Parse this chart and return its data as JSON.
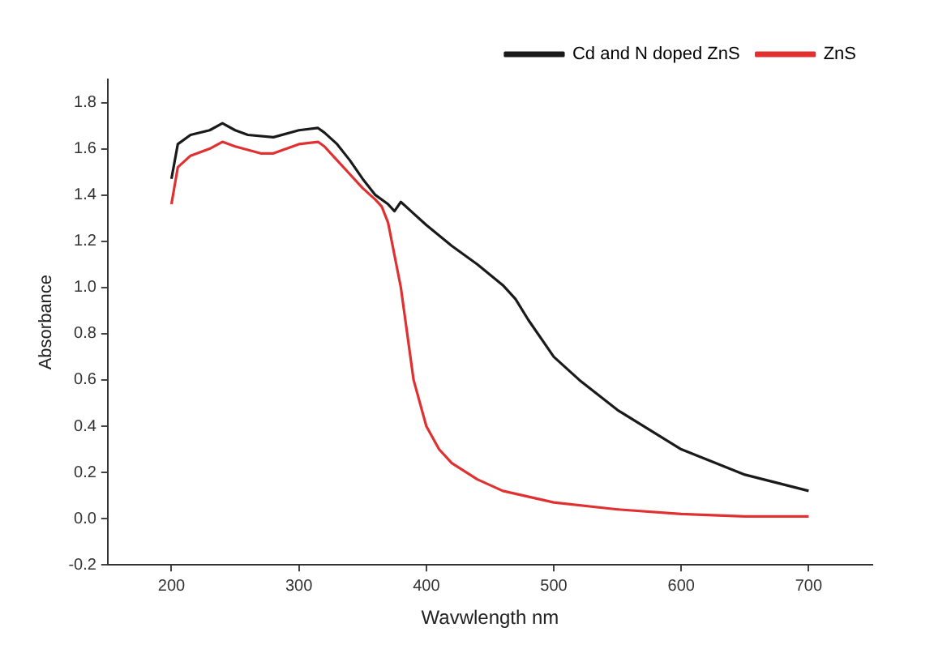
{
  "chart_data": {
    "type": "line",
    "xlabel": "Wavwlength nm",
    "ylabel": "Absorbance",
    "xlim": [
      150,
      750
    ],
    "xticks": [
      200,
      300,
      400,
      500,
      600,
      700
    ],
    "ylim": [
      -0.2,
      1.9
    ],
    "yticks": [
      -0.2,
      {
        "value": 0,
        "label": "0.0"
      },
      0.2,
      0.4,
      0.6,
      0.8,
      {
        "value": 1,
        "label": "1.0"
      },
      1.2,
      1.4,
      1.6,
      1.8
    ],
    "legend": "top right",
    "grid": false,
    "marker": "none",
    "line_style": "solid",
    "series": [
      {
        "name": "Cd and N doped ZnS",
        "color": "#1a1a1a",
        "x": [
          200,
          205,
          215,
          230,
          240,
          250,
          260,
          280,
          300,
          315,
          320,
          330,
          340,
          350,
          360,
          370,
          375,
          380,
          400,
          420,
          440,
          460,
          470,
          480,
          500,
          520,
          550,
          600,
          650,
          700
        ],
        "values": [
          1.47,
          1.62,
          1.66,
          1.68,
          1.71,
          1.68,
          1.66,
          1.65,
          1.68,
          1.69,
          1.67,
          1.62,
          1.55,
          1.47,
          1.4,
          1.36,
          1.33,
          1.37,
          1.27,
          1.18,
          1.1,
          1.01,
          0.95,
          0.86,
          0.7,
          0.6,
          0.47,
          0.3,
          0.19,
          0.12
        ]
      },
      {
        "name": "ZnS",
        "color": "#e03030",
        "x": [
          200,
          205,
          215,
          230,
          240,
          250,
          270,
          280,
          300,
          315,
          320,
          330,
          340,
          350,
          360,
          365,
          370,
          380,
          390,
          400,
          410,
          420,
          440,
          460,
          500,
          550,
          600,
          650,
          700
        ],
        "values": [
          1.36,
          1.52,
          1.57,
          1.6,
          1.63,
          1.61,
          1.58,
          1.58,
          1.62,
          1.63,
          1.61,
          1.55,
          1.49,
          1.43,
          1.38,
          1.35,
          1.28,
          1.0,
          0.6,
          0.4,
          0.3,
          0.24,
          0.17,
          0.12,
          0.07,
          0.04,
          0.02,
          0.01,
          0.01
        ]
      }
    ]
  }
}
